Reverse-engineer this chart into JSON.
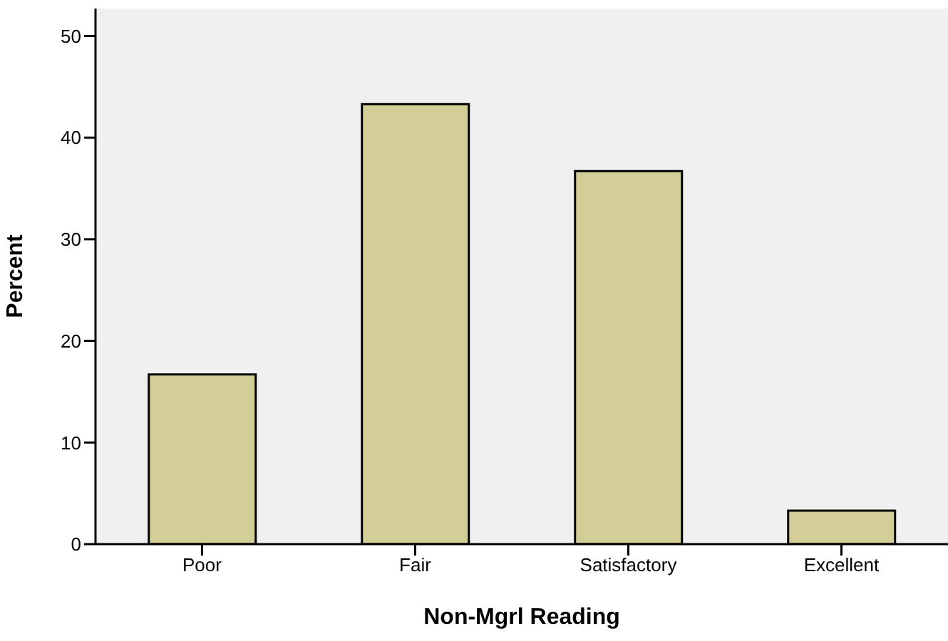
{
  "chart_data": {
    "type": "bar",
    "xlabel": "Non-Mgrl Reading",
    "ylabel": "Percent",
    "categories": [
      "Poor",
      "Fair",
      "Satisfactory",
      "Excellent"
    ],
    "values": [
      16.7,
      43.3,
      36.7,
      3.3
    ],
    "color": "#d3ce97",
    "ylim": [
      0,
      52.7
    ],
    "yticks": [
      0,
      10,
      20,
      30,
      40,
      50
    ]
  }
}
